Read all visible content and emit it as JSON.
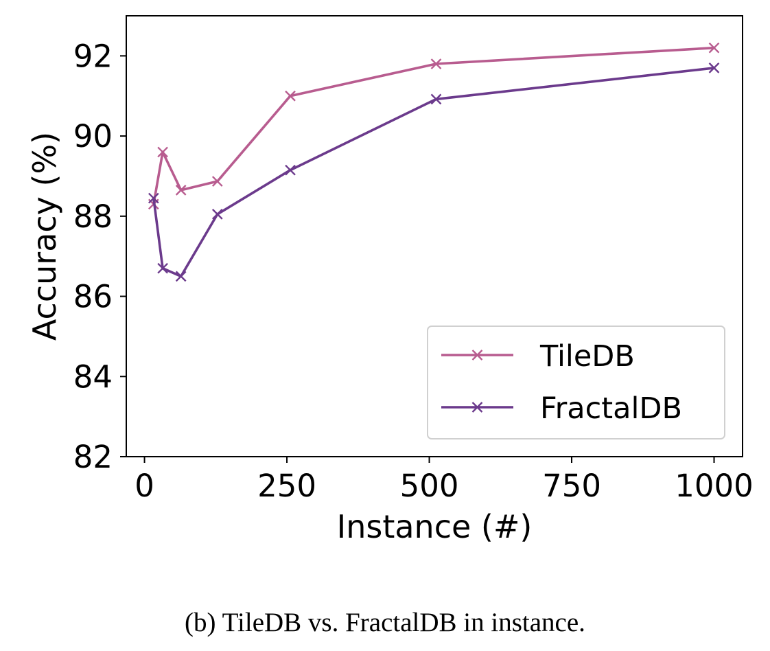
{
  "chart_data": {
    "type": "line",
    "title": "",
    "xlabel": "Instance (#)",
    "ylabel": "Accuracy (%)",
    "xlim": [
      -32,
      1050
    ],
    "ylim": [
      82,
      93
    ],
    "xticks": [
      0,
      250,
      500,
      750,
      1000
    ],
    "xtick_labels": [
      "0",
      "250",
      "500",
      "750",
      "1000"
    ],
    "yticks": [
      82,
      84,
      86,
      88,
      90,
      92
    ],
    "ytick_labels": [
      "82",
      "84",
      "86",
      "88",
      "90",
      "92"
    ],
    "grid": false,
    "legend_position": "lower-right",
    "marker": "x",
    "series": [
      {
        "name": "TileDB",
        "color": "#b85c8f",
        "x": [
          16,
          32,
          64,
          128,
          256,
          512,
          1000
        ],
        "y": [
          88.3,
          89.6,
          88.65,
          88.87,
          91.0,
          91.8,
          92.2
        ]
      },
      {
        "name": "FractalDB",
        "color": "#6b3a8c",
        "x": [
          16,
          32,
          64,
          128,
          256,
          512,
          1000
        ],
        "y": [
          88.45,
          86.7,
          86.5,
          88.05,
          89.15,
          90.92,
          91.7
        ]
      }
    ]
  },
  "caption": "(b) TileDB vs. FractalDB in instance."
}
